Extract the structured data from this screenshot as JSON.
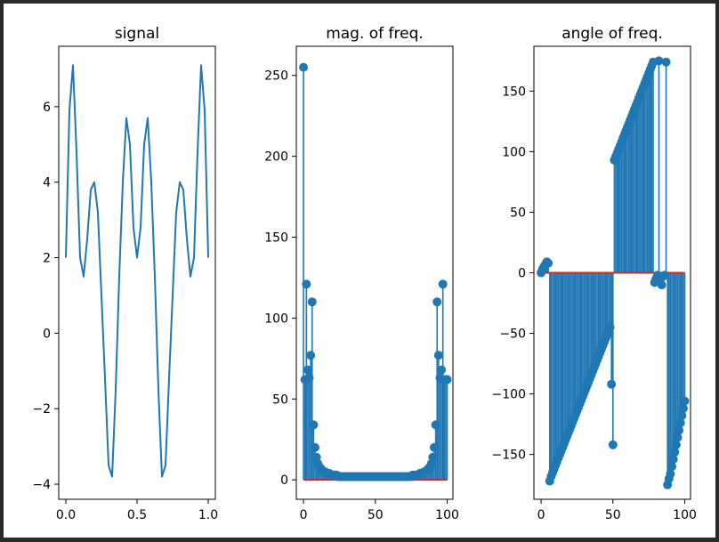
{
  "colors": {
    "series": "#1f77b4",
    "baseline": "#d62728",
    "frame": "#2b2b2b",
    "background": "#ffffff"
  },
  "chart_data": [
    {
      "type": "line",
      "title": "signal",
      "xlabel": "",
      "ylabel": "",
      "xlim": [
        -0.05,
        1.05
      ],
      "ylim": [
        -4.4,
        7.6
      ],
      "xticks": [
        0.0,
        0.5,
        1.0
      ],
      "xtick_labels": [
        "0.0",
        "0.5",
        "1.0"
      ],
      "yticks": [
        -4,
        -2,
        0,
        2,
        4,
        6
      ],
      "ytick_labels": [
        "−4",
        "−2",
        "0",
        "2",
        "4",
        "6"
      ],
      "x": [
        0.0,
        0.025,
        0.05,
        0.075,
        0.1,
        0.125,
        0.15,
        0.175,
        0.2,
        0.225,
        0.25,
        0.275,
        0.3,
        0.325,
        0.35,
        0.375,
        0.4,
        0.425,
        0.45,
        0.475,
        0.5,
        0.525,
        0.55,
        0.575,
        0.6,
        0.625,
        0.65,
        0.675,
        0.7,
        0.725,
        0.75,
        0.775,
        0.8,
        0.825,
        0.85,
        0.875,
        0.9,
        0.925,
        0.95,
        0.975,
        1.0
      ],
      "y": [
        2.0,
        5.9,
        7.1,
        4.8,
        2.0,
        1.5,
        2.5,
        3.8,
        4.0,
        3.2,
        1.0,
        -1.2,
        -3.5,
        -3.8,
        -1.5,
        1.5,
        4.0,
        5.7,
        5.0,
        2.8,
        2.0,
        2.8,
        5.0,
        5.7,
        4.0,
        1.5,
        -1.5,
        -3.8,
        -3.5,
        -1.2,
        1.0,
        3.2,
        4.0,
        3.8,
        2.5,
        1.5,
        2.0,
        4.8,
        7.1,
        5.9,
        2.0
      ]
    },
    {
      "type": "stem",
      "title": "mag. of freq.",
      "xlabel": "",
      "ylabel": "",
      "xlim": [
        -5,
        104
      ],
      "ylim": [
        -12,
        268
      ],
      "xticks": [
        0,
        50,
        100
      ],
      "xtick_labels": [
        "0",
        "50",
        "100"
      ],
      "yticks": [
        0,
        50,
        100,
        150,
        200,
        250
      ],
      "ytick_labels": [
        "0",
        "50",
        "100",
        "150",
        "200",
        "250"
      ],
      "x": [
        0,
        1,
        2,
        3,
        4,
        5,
        6,
        7,
        8,
        9,
        10,
        11,
        12,
        13,
        14,
        15,
        16,
        17,
        18,
        19,
        20,
        21,
        22,
        23,
        24,
        25,
        26,
        27,
        28,
        29,
        30,
        31,
        32,
        33,
        34,
        35,
        36,
        37,
        38,
        39,
        40,
        41,
        42,
        43,
        44,
        45,
        46,
        47,
        48,
        49,
        50,
        51,
        52,
        53,
        54,
        55,
        56,
        57,
        58,
        59,
        60,
        61,
        62,
        63,
        64,
        65,
        66,
        67,
        68,
        69,
        70,
        71,
        72,
        73,
        74,
        75,
        76,
        77,
        78,
        79,
        80,
        81,
        82,
        83,
        84,
        85,
        86,
        87,
        88,
        89,
        90,
        91,
        92,
        93,
        94,
        95,
        96,
        97,
        98,
        99,
        100
      ],
      "values": [
        255,
        62,
        121,
        68,
        63,
        77,
        110,
        34,
        20,
        14,
        10,
        8,
        7,
        6,
        5,
        5,
        4,
        4,
        4,
        3,
        3,
        3,
        3,
        3,
        2,
        2,
        2,
        2,
        2,
        2,
        2,
        2,
        2,
        2,
        2,
        2,
        2,
        2,
        2,
        2,
        2,
        2,
        2,
        2,
        2,
        2,
        2,
        2,
        2,
        2,
        2,
        2,
        2,
        2,
        2,
        2,
        2,
        2,
        2,
        2,
        2,
        2,
        2,
        2,
        2,
        2,
        2,
        2,
        2,
        2,
        2,
        2,
        2,
        2,
        2,
        2,
        3,
        3,
        3,
        3,
        3,
        4,
        4,
        4,
        5,
        5,
        6,
        7,
        8,
        10,
        14,
        20,
        34,
        110,
        77,
        63,
        68,
        121,
        62,
        62,
        62
      ]
    },
    {
      "type": "stem",
      "title": "angle of freq.",
      "xlabel": "",
      "ylabel": "",
      "xlim": [
        -5,
        104
      ],
      "ylim": [
        -187,
        187
      ],
      "xticks": [
        0,
        50,
        100
      ],
      "xtick_labels": [
        "0",
        "50",
        "100"
      ],
      "yticks": [
        -150,
        -100,
        -50,
        0,
        50,
        100,
        150
      ],
      "ytick_labels": [
        "−150",
        "−100",
        "−50",
        "0",
        "50",
        "100",
        "150"
      ],
      "x": [
        0,
        1,
        2,
        3,
        4,
        5,
        6,
        7,
        8,
        9,
        10,
        11,
        12,
        13,
        14,
        15,
        16,
        17,
        18,
        19,
        20,
        21,
        22,
        23,
        24,
        25,
        26,
        27,
        28,
        29,
        30,
        31,
        32,
        33,
        34,
        35,
        36,
        37,
        38,
        39,
        40,
        41,
        42,
        43,
        44,
        45,
        46,
        47,
        48,
        49,
        50,
        51,
        52,
        53,
        54,
        55,
        56,
        57,
        58,
        59,
        60,
        61,
        62,
        63,
        64,
        65,
        66,
        67,
        68,
        69,
        70,
        71,
        72,
        73,
        74,
        75,
        76,
        77,
        78,
        79,
        80,
        81,
        82,
        83,
        84,
        85,
        86,
        87,
        88,
        89,
        90,
        91,
        92,
        93,
        94,
        95,
        96,
        97,
        98,
        99,
        100
      ],
      "values": [
        0,
        3,
        5,
        7,
        9,
        8,
        -172,
        -168,
        -165,
        -162,
        -159,
        -156,
        -153,
        -150,
        -147,
        -144,
        -141,
        -138,
        -135,
        -132,
        -129,
        -126,
        -123,
        -120,
        -117,
        -114,
        -111,
        -108,
        -105,
        -102,
        -99,
        -96,
        -93,
        -90,
        -87,
        -84,
        -81,
        -78,
        -75,
        -72,
        -69,
        -66,
        -63,
        -60,
        -57,
        -54,
        -51,
        -48,
        -45,
        -92,
        -142,
        93,
        96,
        99,
        102,
        105,
        108,
        111,
        114,
        117,
        120,
        123,
        126,
        129,
        132,
        135,
        138,
        141,
        144,
        147,
        150,
        153,
        156,
        159,
        162,
        165,
        168,
        171,
        174,
        -8,
        -5,
        -2,
        175,
        -5,
        -10,
        -3,
        -2,
        174,
        -175,
        -170,
        -166,
        -160,
        -154,
        -148,
        -142,
        -136,
        -130,
        -124,
        -118,
        -112,
        -106
      ]
    }
  ]
}
